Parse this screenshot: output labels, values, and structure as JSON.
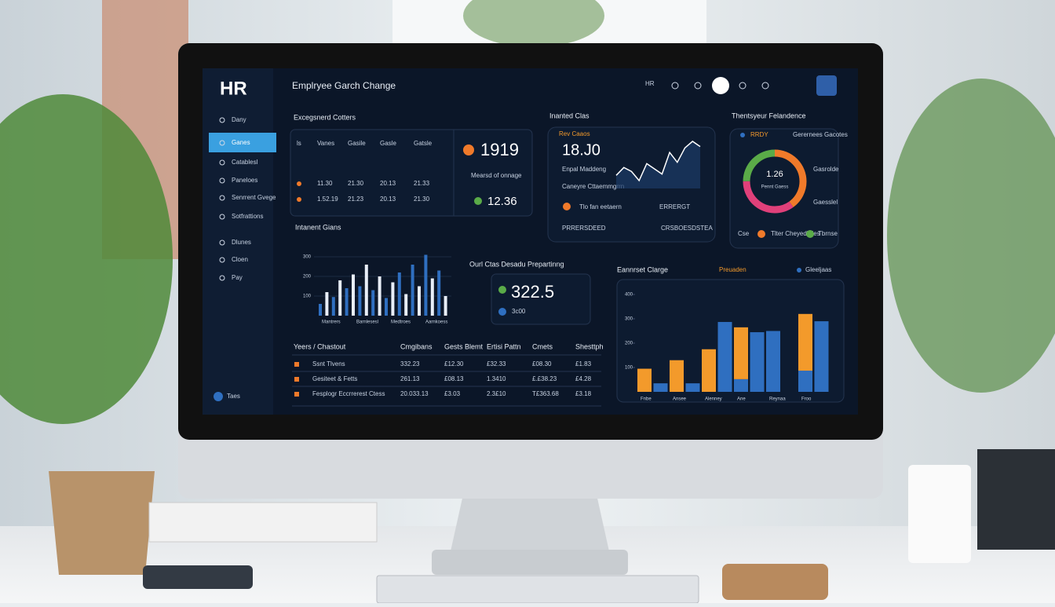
{
  "sidebar": {
    "logo": "HR",
    "items": [
      "Dany",
      "Ganes",
      "Catablesl",
      "Paneloes",
      "Senrrent Gvege",
      "Sotfrattions",
      "Dlunes",
      "Cloen",
      "Pay"
    ],
    "footer": "Taes"
  },
  "header": {
    "title": "Emplryee Garch Change",
    "user": "HR"
  },
  "employee_card": {
    "title": "Excegsnerd Cotters",
    "columns": [
      "ls",
      "Vanes",
      "Gasile",
      "Gasle",
      "Gatsle"
    ],
    "rows": [
      [
        "11.30",
        "21.30",
        "20.13",
        "21.33"
      ],
      [
        "1.52.19",
        "21.23",
        "20.13",
        "21.30"
      ]
    ],
    "stat": "1919",
    "stat_caption": "Mearsd of onnage",
    "stat2": "12.36"
  },
  "trend_card": {
    "title": "Inanted Clas",
    "label": "Rev Caaos",
    "value": "18.J0",
    "caption": "Enpal Maddeng",
    "sub": "Caneyre Cttaemmgrrn",
    "line_values": [
      20,
      32,
      26,
      12,
      38,
      30,
      22,
      55,
      40,
      62,
      72,
      64
    ],
    "footer": [
      "Tlo fan eetaern",
      "ERRERGT",
      "PRRERSDEED",
      "CRSBOESDSTEA"
    ]
  },
  "donut_card": {
    "title": "Thentsyeur Felandence",
    "top": [
      "RRDY",
      "Gerernees Gacotes"
    ],
    "center": "1.26",
    "center_caption": "Pennt Gaess",
    "side": [
      "Gasrolde",
      "Gaesslel"
    ],
    "legend": [
      "Cse",
      "Tlter Cheyedltdes",
      "Tbrnse"
    ],
    "values": [
      40,
      35,
      25
    ],
    "colors": [
      "#f07a2a",
      "#e0407a",
      "#5aab48"
    ]
  },
  "bars_small": {
    "title": "Intanent Gians",
    "ylim": [
      0,
      400
    ],
    "yticks": [
      100,
      200,
      300
    ],
    "values": [
      60,
      120,
      95,
      180,
      140,
      210,
      150,
      260,
      130,
      200,
      90,
      170,
      220,
      110,
      260,
      150,
      310,
      190,
      230,
      100
    ],
    "colors": [
      "#2f6fc0",
      "#e8eef8"
    ],
    "labels": [
      "Mantrers",
      "Barnlesesl",
      "Medtroes",
      "Aarnkoess"
    ]
  },
  "center_card": {
    "title": "Ourl Ctas Desadu Prepartinng",
    "value": "322.5",
    "sub": "3c00"
  },
  "table": {
    "columns": [
      "Yeers / Chastout",
      "Cmgibans",
      "Gests Blemt",
      "Ertisi Pattn",
      "Cmets",
      "Shesttph"
    ],
    "rows": [
      [
        "Ssnt Tlvens",
        "332.23",
        "£12.30",
        "£32.33",
        "£08.30",
        "£1.83"
      ],
      [
        "Gesiteet & Fetts",
        "261.13",
        "£08.13",
        "1.3410",
        "£.£38.23",
        "£4.28"
      ],
      [
        "Fesplogr Eccrrerest Ctess",
        "20.033.13",
        "£3.03",
        "2.3£10",
        "T£363.68",
        "£3.18"
      ]
    ]
  },
  "bars_stacked": {
    "title": "Eannrset Clarge",
    "legend": [
      "Preuaden",
      "Gleeljaas"
    ],
    "ylim": [
      0,
      400
    ],
    "yticks": [
      100,
      200,
      300,
      400
    ],
    "categories": [
      "Fnbe",
      null,
      "Ansee",
      null,
      "Alenney",
      null,
      "Ane",
      null,
      "Reynaa",
      null,
      "Froo",
      null
    ],
    "series": [
      {
        "name": "Gleeljaas",
        "color": "#2f6fc0",
        "values": [
          0,
          35,
          0,
          35,
          0,
          287,
          52,
          245,
          250,
          0,
          87,
          290
        ]
      },
      {
        "name": "Preuaden",
        "color": "#f39a2b",
        "values": [
          95,
          0,
          130,
          0,
          175,
          0,
          213,
          0,
          0,
          0,
          233,
          0
        ]
      }
    ]
  }
}
